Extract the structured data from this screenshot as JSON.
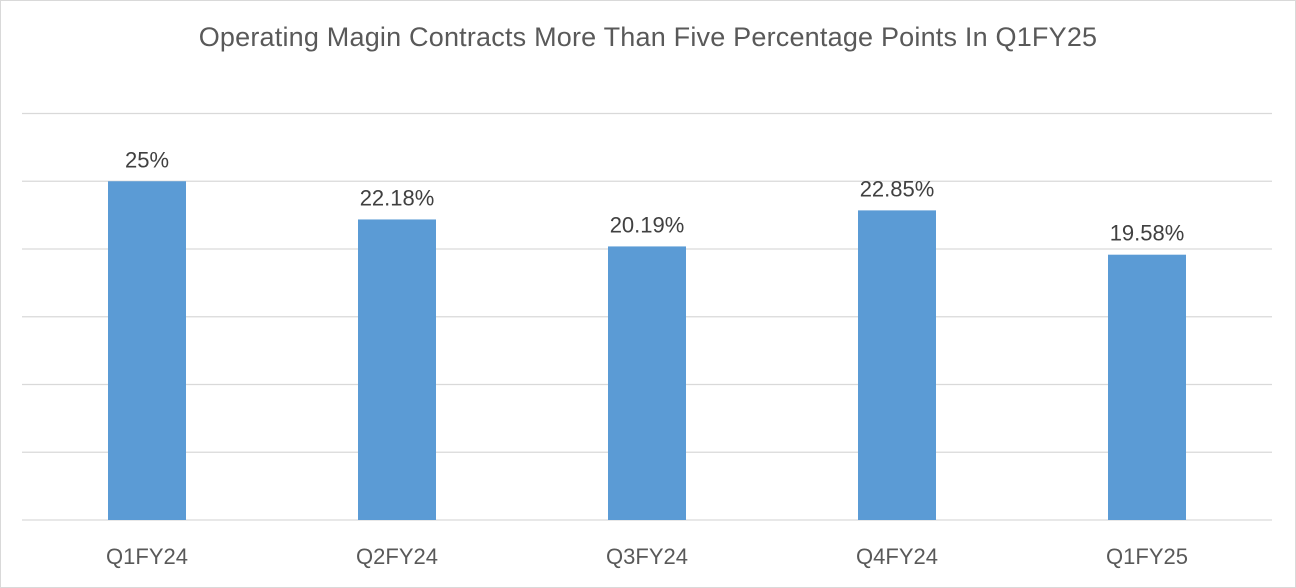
{
  "chart_data": {
    "type": "bar",
    "title": "Operating Magin Contracts More Than  Five Percentage Points In Q1FY25",
    "categories": [
      "Q1FY24",
      "Q2FY24",
      "Q3FY24",
      "Q4FY24",
      "Q1FY25"
    ],
    "values": [
      25,
      22.18,
      20.19,
      22.85,
      19.58
    ],
    "data_labels": [
      "25%",
      "22.18%",
      "20.19%",
      "22.85%",
      "19.58%"
    ],
    "xlabel": "",
    "ylabel": "",
    "ylim": [
      0,
      30
    ],
    "y_gridline_step": 5,
    "y_tick_labels_shown": false,
    "grid": true,
    "legend": "none",
    "bar_color": "#5b9bd5"
  }
}
